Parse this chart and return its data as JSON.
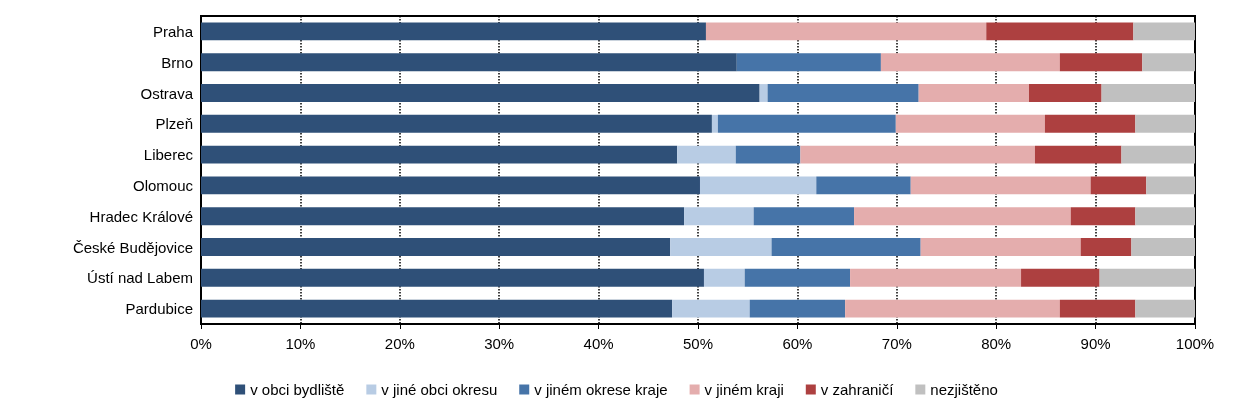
{
  "chart_data": {
    "type": "bar",
    "orientation": "horizontal",
    "stacked": true,
    "categories": [
      "Praha",
      "Brno",
      "Ostrava",
      "Plzeň",
      "Liberec",
      "Olomouc",
      "Hradec Králové",
      "České Budějovice",
      "Ústí nad Labem",
      "Pardubice"
    ],
    "series": [
      {
        "name": "v obci bydliště",
        "color": "#2f5078",
        "values": [
          50.8,
          53.9,
          56.2,
          51.4,
          47.9,
          50.2,
          48.6,
          47.2,
          50.6,
          47.4
        ]
      },
      {
        "name": "v jiné obci okresu",
        "color": "#b8cce4",
        "values": [
          0,
          0,
          0.8,
          0.6,
          5.9,
          11.7,
          7.0,
          10.2,
          4.1,
          7.8
        ]
      },
      {
        "name": "v jiném okrese kraje",
        "color": "#4674a8",
        "values": [
          0,
          14.5,
          15.2,
          17.9,
          6.5,
          9.5,
          10.1,
          15.0,
          10.6,
          9.6
        ]
      },
      {
        "name": "v jiném kraji",
        "color": "#e4adad",
        "values": [
          28.2,
          18.0,
          11.1,
          15.0,
          23.6,
          18.1,
          21.8,
          16.1,
          17.2,
          21.6
        ]
      },
      {
        "name": "v zahraničí",
        "color": "#ad4040",
        "values": [
          14.8,
          8.3,
          7.3,
          9.1,
          8.7,
          5.6,
          6.5,
          5.1,
          7.9,
          7.6
        ]
      },
      {
        "name": "nezjištěno",
        "color": "#c0c0c0",
        "values": [
          6.2,
          5.3,
          9.4,
          6.0,
          7.4,
          4.9,
          6.0,
          6.4,
          9.6,
          6.0
        ]
      }
    ],
    "xlim": [
      0,
      100
    ],
    "xticks": [
      {
        "value": 0,
        "label": "0%"
      },
      {
        "value": 10,
        "label": "10%"
      },
      {
        "value": 20,
        "label": "20%"
      },
      {
        "value": 30,
        "label": "30%"
      },
      {
        "value": 40,
        "label": "40%"
      },
      {
        "value": 50,
        "label": "50%"
      },
      {
        "value": 60,
        "label": "60%"
      },
      {
        "value": 70,
        "label": "70%"
      },
      {
        "value": 80,
        "label": "80%"
      },
      {
        "value": 90,
        "label": "90%"
      },
      {
        "value": 100,
        "label": "100%"
      }
    ],
    "grid": "x",
    "legend": "bottom"
  }
}
